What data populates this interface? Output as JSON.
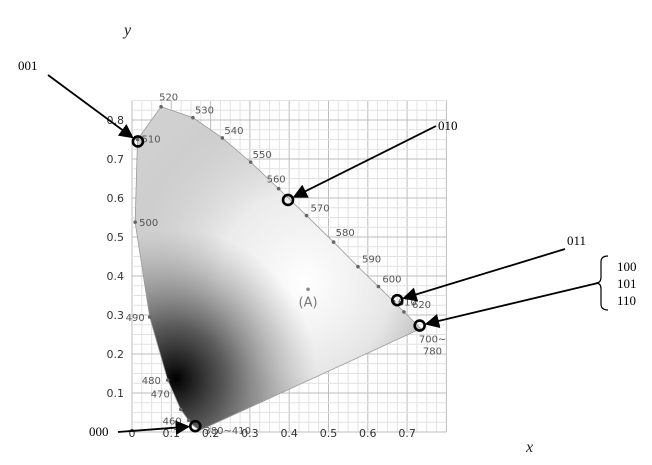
{
  "chart_data": {
    "type": "scatter",
    "xlabel": "x",
    "ylabel": "y",
    "xlim": [
      0,
      0.8
    ],
    "ylim": [
      0,
      0.85
    ],
    "x_ticks": [
      "0",
      "0.1",
      "0.2",
      "0.3",
      "0.4",
      "0.5",
      "0.6",
      "0.7"
    ],
    "y_ticks": [
      "0.1",
      "0.2",
      "0.3",
      "0.4",
      "0.5",
      "0.6",
      "0.7",
      "0.8"
    ],
    "grid": true,
    "locus": [
      {
        "label": "460",
        "x": 0.144,
        "y": 0.03
      },
      {
        "label": "470",
        "x": 0.124,
        "y": 0.058
      },
      {
        "label": "480",
        "x": 0.091,
        "y": 0.133
      },
      {
        "label": "490",
        "x": 0.045,
        "y": 0.295
      },
      {
        "label": "500",
        "x": 0.008,
        "y": 0.538
      },
      {
        "label": "510",
        "x": 0.014,
        "y": 0.75
      },
      {
        "label": "520",
        "x": 0.074,
        "y": 0.834
      },
      {
        "label": "530",
        "x": 0.155,
        "y": 0.806
      },
      {
        "label": "540",
        "x": 0.23,
        "y": 0.754
      },
      {
        "label": "550",
        "x": 0.302,
        "y": 0.692
      },
      {
        "label": "560",
        "x": 0.373,
        "y": 0.624
      },
      {
        "label": "570",
        "x": 0.444,
        "y": 0.555
      },
      {
        "label": "580",
        "x": 0.513,
        "y": 0.487
      },
      {
        "label": "590",
        "x": 0.575,
        "y": 0.424
      },
      {
        "label": "600",
        "x": 0.627,
        "y": 0.373
      },
      {
        "label": "610",
        "x": 0.666,
        "y": 0.334
      },
      {
        "label": "620",
        "x": 0.692,
        "y": 0.308
      },
      {
        "label": "700~\n780",
        "x": 0.735,
        "y": 0.265
      },
      {
        "label": "380~410",
        "x": 0.174,
        "y": 0.005
      }
    ],
    "illuminant": {
      "label": "(A)",
      "x": 0.448,
      "y": 0.407
    },
    "marked_points": [
      {
        "code": "001",
        "x": 0.015,
        "y": 0.745
      },
      {
        "code": "010",
        "x": 0.397,
        "y": 0.595
      },
      {
        "code": "011",
        "x": 0.675,
        "y": 0.338
      },
      {
        "code": "000",
        "x": 0.161,
        "y": 0.015
      },
      {
        "codes": [
          "100",
          "101",
          "110"
        ],
        "x": 0.732,
        "y": 0.273
      }
    ]
  }
}
